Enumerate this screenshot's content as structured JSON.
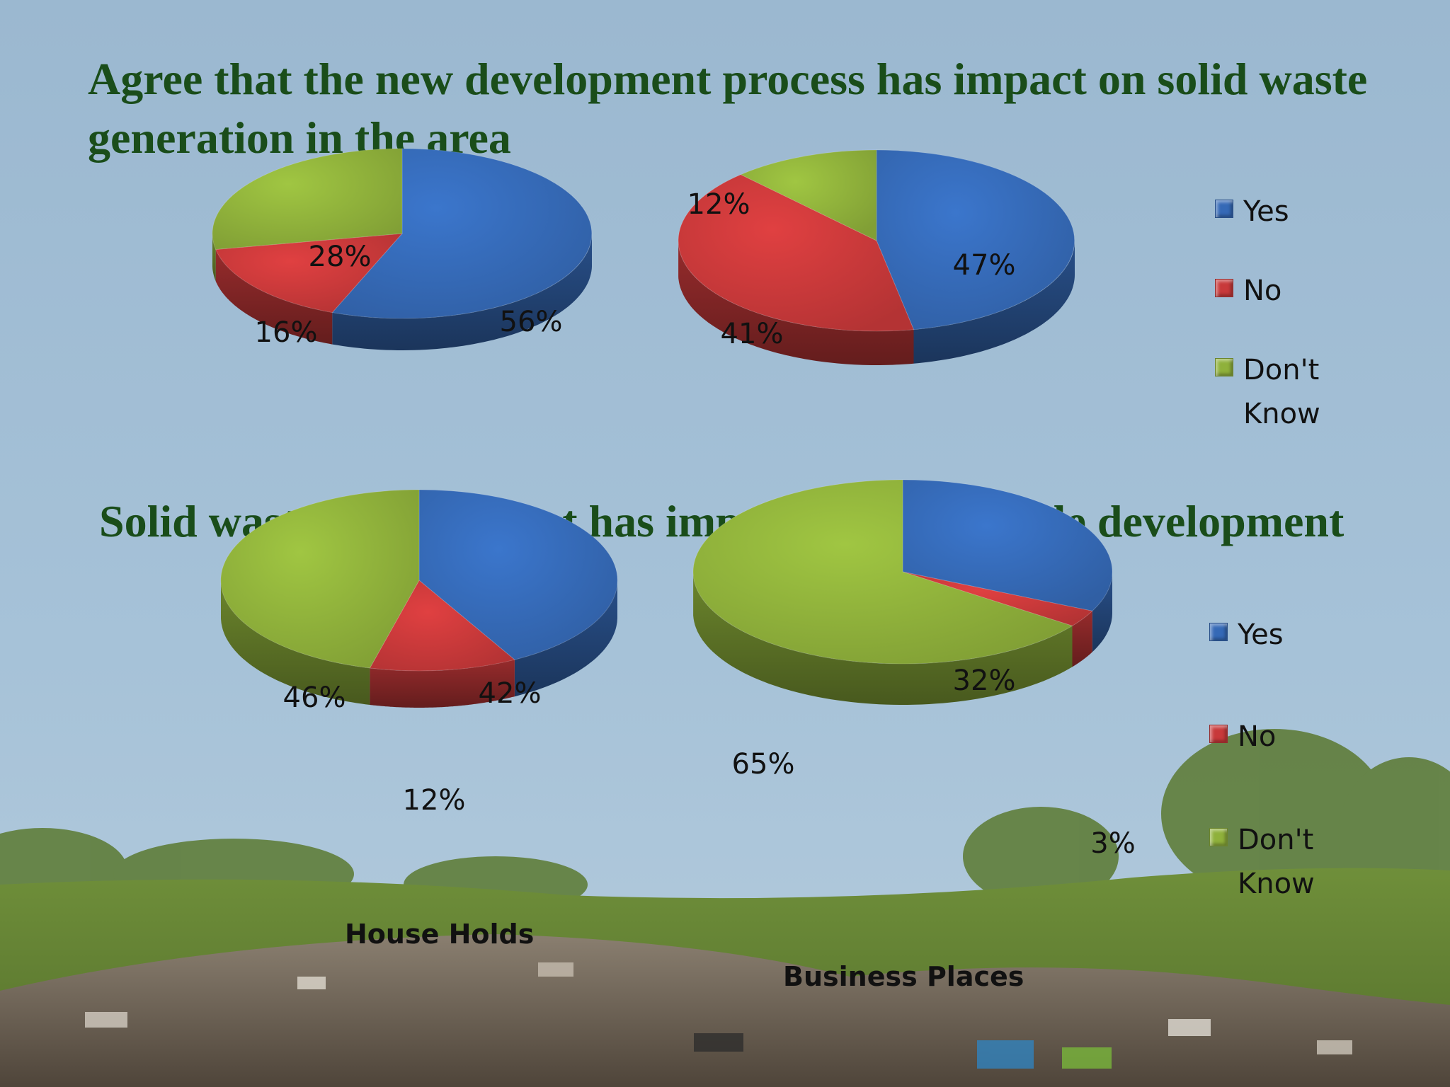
{
  "colors": {
    "yes": "#3569b6",
    "no": "#c8393a",
    "dont_know": "#8fb13b",
    "title": "#1a4d1a"
  },
  "titles": {
    "top": "Agree that the new development process has impact on solid waste generation in the area",
    "bottom": "Solid waste management has impact on sustainable development"
  },
  "legend": {
    "top": [
      {
        "label": "Yes"
      },
      {
        "label": "No"
      },
      {
        "label": "Don't Know"
      }
    ],
    "bottom": [
      {
        "label": "Yes"
      },
      {
        "label": "No"
      },
      {
        "label": "Don't Know"
      }
    ]
  },
  "categories": [
    "House Holds",
    "Business Places"
  ],
  "chart_data": [
    {
      "type": "pie",
      "title": "Agree that the new development process has impact on solid waste generation in the area",
      "category": "House Holds",
      "series": [
        {
          "name": "Yes",
          "value": 56
        },
        {
          "name": "No",
          "value": 16
        },
        {
          "name": "Don't Know",
          "value": 28
        }
      ],
      "labels": [
        "56%",
        "16%",
        "28%"
      ],
      "legend_position": "right"
    },
    {
      "type": "pie",
      "title": "Agree that the new development process has impact on solid waste generation in the area",
      "category": "Business Places",
      "series": [
        {
          "name": "Yes",
          "value": 47
        },
        {
          "name": "No",
          "value": 41
        },
        {
          "name": "Don't Know",
          "value": 12
        }
      ],
      "labels": [
        "47%",
        "41%",
        "12%"
      ],
      "legend_position": "right"
    },
    {
      "type": "pie",
      "title": "Solid waste management has impact on sustainable development",
      "category": "House Holds",
      "series": [
        {
          "name": "Yes",
          "value": 42
        },
        {
          "name": "No",
          "value": 12
        },
        {
          "name": "Don't Know",
          "value": 46
        }
      ],
      "labels": [
        "42%",
        "12%",
        "46%"
      ],
      "legend_position": "right"
    },
    {
      "type": "pie",
      "title": "Solid waste management has impact on sustainable development",
      "category": "Business Places",
      "series": [
        {
          "name": "Yes",
          "value": 32
        },
        {
          "name": "No",
          "value": 3
        },
        {
          "name": "Don't Know",
          "value": 65
        }
      ],
      "labels": [
        "32%",
        "3%",
        "65%"
      ],
      "legend_position": "right"
    }
  ]
}
